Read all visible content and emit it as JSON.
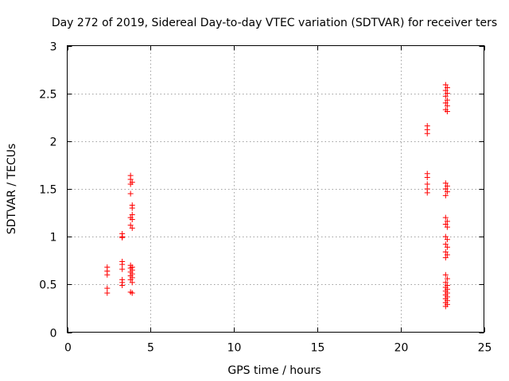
{
  "chart_data": {
    "type": "scatter",
    "title": "Day 272 of 2019, Sidereal Day-to-day VTEC variation (SDTVAR) for receiver ters",
    "xlabel": "GPS time / hours",
    "ylabel": "SDTVAR / TECUs",
    "xlim": [
      0,
      25
    ],
    "ylim": [
      0,
      3
    ],
    "xticks": [
      "0",
      "5",
      "10",
      "15",
      "20",
      "25"
    ],
    "yticks": [
      "0",
      "0.5",
      "1",
      "1.5",
      "2",
      "2.5",
      "3"
    ],
    "xtick_values": [
      0,
      5,
      10,
      15,
      20,
      25
    ],
    "ytick_values": [
      0,
      0.5,
      1,
      1.5,
      2,
      2.5,
      3
    ],
    "grid": true,
    "marker": "plus",
    "color": "#ff0000",
    "series": [
      {
        "points": [
          [
            2.4,
            0.68
          ],
          [
            2.4,
            0.64
          ],
          [
            2.4,
            0.6
          ],
          [
            2.4,
            0.46
          ],
          [
            2.4,
            0.41
          ],
          [
            3.3,
            1.03
          ],
          [
            3.3,
            1.0
          ],
          [
            3.3,
            0.99
          ],
          [
            3.3,
            0.74
          ],
          [
            3.3,
            0.71
          ],
          [
            3.3,
            0.66
          ],
          [
            3.3,
            0.55
          ],
          [
            3.3,
            0.52
          ],
          [
            3.3,
            0.49
          ],
          [
            3.8,
            1.64
          ],
          [
            3.8,
            1.6
          ],
          [
            3.9,
            1.57
          ],
          [
            3.8,
            1.55
          ],
          [
            3.8,
            1.45
          ],
          [
            3.9,
            1.33
          ],
          [
            3.9,
            1.3
          ],
          [
            3.9,
            1.23
          ],
          [
            3.8,
            1.2
          ],
          [
            3.9,
            1.18
          ],
          [
            3.8,
            1.12
          ],
          [
            3.9,
            1.09
          ],
          [
            3.8,
            0.7
          ],
          [
            3.9,
            0.68
          ],
          [
            3.8,
            0.67
          ],
          [
            3.9,
            0.65
          ],
          [
            3.8,
            0.63
          ],
          [
            3.9,
            0.61
          ],
          [
            3.8,
            0.59
          ],
          [
            3.9,
            0.57
          ],
          [
            3.8,
            0.55
          ],
          [
            3.9,
            0.52
          ],
          [
            3.8,
            0.42
          ],
          [
            3.9,
            0.41
          ],
          [
            21.6,
            2.16
          ],
          [
            21.6,
            2.12
          ],
          [
            21.6,
            2.08
          ],
          [
            21.6,
            1.66
          ],
          [
            21.6,
            1.62
          ],
          [
            21.6,
            1.55
          ],
          [
            21.6,
            1.5
          ],
          [
            21.6,
            1.46
          ],
          [
            22.7,
            2.59
          ],
          [
            22.8,
            2.56
          ],
          [
            22.7,
            2.53
          ],
          [
            22.8,
            2.5
          ],
          [
            22.7,
            2.47
          ],
          [
            22.8,
            2.43
          ],
          [
            22.7,
            2.4
          ],
          [
            22.8,
            2.37
          ],
          [
            22.7,
            2.33
          ],
          [
            22.8,
            2.31
          ],
          [
            22.7,
            1.56
          ],
          [
            22.8,
            1.53
          ],
          [
            22.7,
            1.5
          ],
          [
            22.8,
            1.47
          ],
          [
            22.7,
            1.43
          ],
          [
            22.7,
            1.2
          ],
          [
            22.8,
            1.16
          ],
          [
            22.7,
            1.13
          ],
          [
            22.8,
            1.1
          ],
          [
            22.7,
            1.0
          ],
          [
            22.8,
            0.97
          ],
          [
            22.7,
            0.92
          ],
          [
            22.8,
            0.89
          ],
          [
            22.7,
            0.84
          ],
          [
            22.8,
            0.81
          ],
          [
            22.7,
            0.78
          ],
          [
            22.7,
            0.6
          ],
          [
            22.8,
            0.56
          ],
          [
            22.7,
            0.52
          ],
          [
            22.8,
            0.49
          ],
          [
            22.7,
            0.47
          ],
          [
            22.8,
            0.45
          ],
          [
            22.7,
            0.43
          ],
          [
            22.8,
            0.41
          ],
          [
            22.7,
            0.39
          ],
          [
            22.8,
            0.37
          ],
          [
            22.7,
            0.35
          ],
          [
            22.8,
            0.33
          ],
          [
            22.7,
            0.31
          ],
          [
            22.8,
            0.29
          ],
          [
            22.7,
            0.27
          ]
        ]
      }
    ]
  }
}
